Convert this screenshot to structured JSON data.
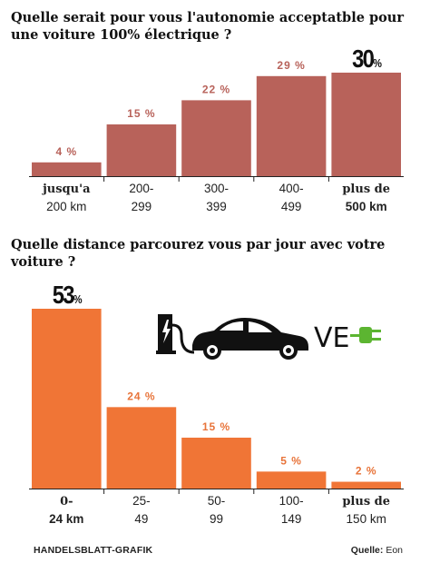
{
  "chart_data": [
    {
      "type": "bar",
      "title": "Quelle serait pour vous l'autonomie acceptatble pour une voiture 100% électrique ?",
      "categories": [
        {
          "top": "jusqu'a",
          "bottom": "200 km",
          "top_bold": true,
          "bottom_bold": false
        },
        {
          "top": "200-",
          "bottom": "299",
          "top_bold": false,
          "bottom_bold": false
        },
        {
          "top": "300-",
          "bottom": "399",
          "top_bold": false,
          "bottom_bold": false
        },
        {
          "top": "400-",
          "bottom": "499",
          "top_bold": false,
          "bottom_bold": false
        },
        {
          "top": "plus de",
          "bottom": "500 km",
          "top_bold": true,
          "bottom_bold": true
        }
      ],
      "values": [
        4,
        15,
        22,
        29,
        30
      ],
      "labels": [
        "4 %",
        "15 %",
        "22 %",
        "29 %",
        "30%"
      ],
      "ylim": [
        0,
        30
      ],
      "color": "#b8625a",
      "label_color": "#b8625a",
      "highlight_index": 4
    },
    {
      "type": "bar",
      "title": "Quelle distance parcourez vous par jour avec votre voiture ?",
      "categories": [
        {
          "top": "0-",
          "bottom": "24 km",
          "top_bold": true,
          "bottom_bold": true
        },
        {
          "top": "25-",
          "bottom": "49",
          "top_bold": false,
          "bottom_bold": false
        },
        {
          "top": "50-",
          "bottom": "99",
          "top_bold": false,
          "bottom_bold": false
        },
        {
          "top": "100-",
          "bottom": "149",
          "top_bold": false,
          "bottom_bold": false
        },
        {
          "top": "plus de",
          "bottom": "150 km",
          "top_bold": true,
          "bottom_bold": false
        }
      ],
      "values": [
        53,
        24,
        15,
        5,
        2
      ],
      "labels": [
        "53%",
        "24 %",
        "15 %",
        "5 %",
        "2 %"
      ],
      "ylim": [
        0,
        53
      ],
      "color": "#f07536",
      "label_color": "#e8743a",
      "highlight_index": 0
    }
  ],
  "logo_text": "VE",
  "footer": {
    "source_credit": "HANDELSBLATT-GRAFIK",
    "source_label": "Quelle:",
    "source_value": "Eon"
  }
}
